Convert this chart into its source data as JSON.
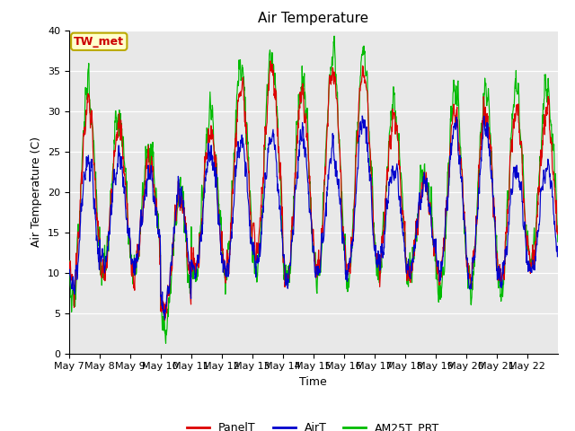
{
  "title": "Air Temperature",
  "ylabel": "Air Temperature (C)",
  "xlabel": "Time",
  "ylim": [
    0,
    40
  ],
  "background_color": "#e8e8e8",
  "annotation_text": "TW_met",
  "annotation_facecolor": "#ffffcc",
  "annotation_edgecolor": "#bbaa00",
  "annotation_textcolor": "#cc0000",
  "legend_labels": [
    "PanelT",
    "AirT",
    "AM25T_PRT"
  ],
  "legend_colors": [
    "#dd0000",
    "#0000cc",
    "#00bb00"
  ],
  "xtick_labels": [
    "May 7",
    "May 8",
    "May 9",
    "May 10",
    "May 11",
    "May 12",
    "May 13",
    "May 14",
    "May 15",
    "May 16",
    "May 17",
    "May 18",
    "May 19",
    "May 20",
    "May 21",
    "May 22"
  ],
  "title_fontsize": 11,
  "label_fontsize": 9,
  "tick_fontsize": 8
}
